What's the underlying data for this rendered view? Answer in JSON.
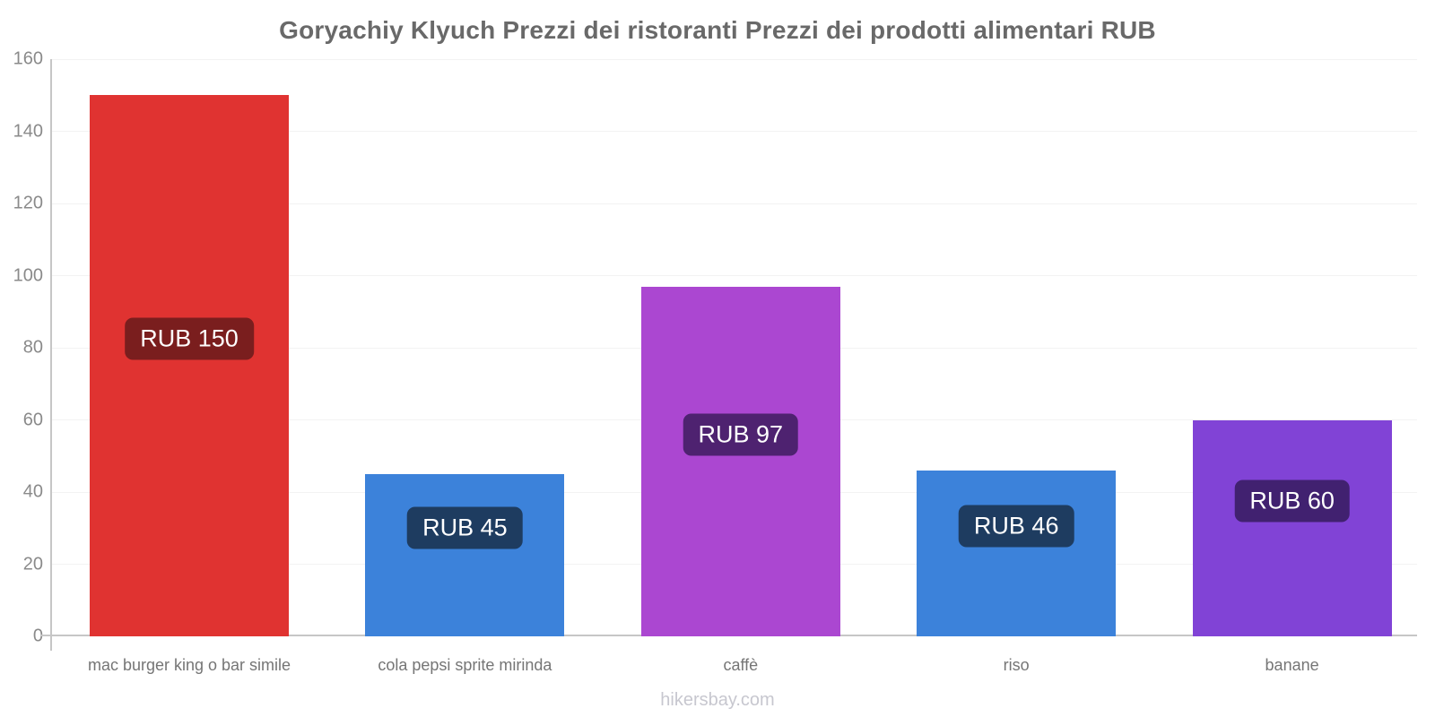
{
  "chart": {
    "footer": "hikersbay.com"
  },
  "chart_data": {
    "type": "bar",
    "title": "Goryachiy Klyuch Prezzi dei ristoranti Prezzi dei prodotti alimentari RUB",
    "categories": [
      "mac burger king o bar simile",
      "cola pepsi sprite mirinda",
      "caffè",
      "riso",
      "banane"
    ],
    "values": [
      150,
      45,
      97,
      46,
      60
    ],
    "value_labels": [
      "RUB 150",
      "RUB 45",
      "RUB 97",
      "RUB 46",
      "RUB 60"
    ],
    "currency": "RUB",
    "bar_colors": [
      "#e03331",
      "#3c82da",
      "#ab47d1",
      "#3c82da",
      "#8143d6"
    ],
    "badge_colors": [
      "#7a1e1e",
      "#1e3c60",
      "#4e2270",
      "#412170"
    ],
    "badge_colors_per_bar": [
      "#7a1e1e",
      "#1e3c60",
      "#4e2270",
      "#1e3c60",
      "#412170"
    ],
    "xlabel": "",
    "ylabel": "",
    "ylim": [
      0,
      160
    ],
    "ytick_step": 20,
    "yticks": [
      0,
      20,
      40,
      60,
      80,
      100,
      120,
      140,
      160
    ],
    "grid": true,
    "legend": false,
    "grid_color": "#f3f3f3",
    "axis_color": "#c6c6c6",
    "tick_label_color": "#8a8a8a",
    "category_label_color": "#757575",
    "title_color": "#696969",
    "badge_text_color": "#ffffff"
  }
}
